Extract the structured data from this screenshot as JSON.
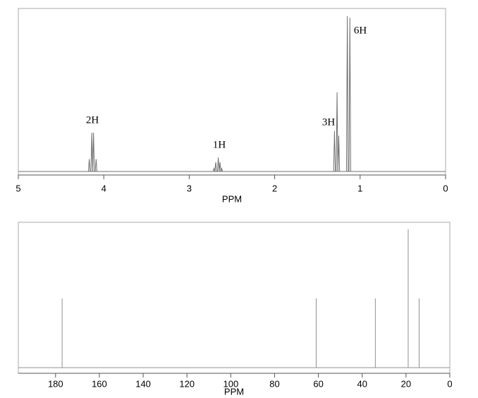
{
  "chart_data": [
    {
      "type": "spectrum",
      "x": [
        4.17,
        4.14,
        4.12,
        4.09,
        2.71,
        2.69,
        2.66,
        2.64,
        2.62,
        1.3,
        1.27,
        1.25,
        1.15,
        1.12
      ],
      "values": [
        8,
        25,
        25,
        8,
        2,
        6,
        9,
        6,
        2,
        26,
        51,
        23,
        100,
        99
      ],
      "xlim": [
        5,
        0
      ],
      "ylim": [
        0,
        105
      ],
      "xticks": [
        5,
        4,
        3,
        2,
        1,
        0
      ],
      "xlabel": "PPM",
      "annotations": [
        "2H",
        "1H",
        "3H",
        "6H"
      ],
      "color": "#707070"
    },
    {
      "type": "stick",
      "x": [
        177,
        61,
        34,
        19,
        14
      ],
      "values": [
        50,
        50,
        50,
        100,
        50
      ],
      "xlim": [
        197,
        0
      ],
      "ylim": [
        0,
        105
      ],
      "xticks": [
        180,
        160,
        140,
        120,
        100,
        80,
        60,
        40,
        20,
        0
      ],
      "xlabel": "PPM",
      "color": "#909090"
    }
  ]
}
